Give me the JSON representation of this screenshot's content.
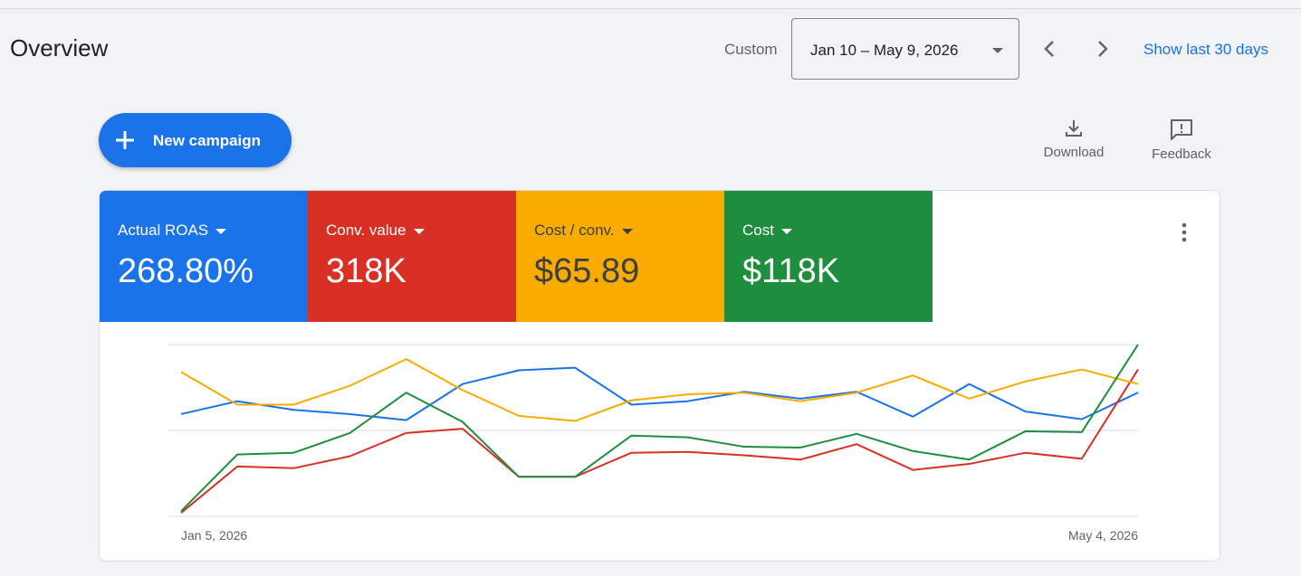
{
  "header": {
    "title": "Overview",
    "custom_label": "Custom",
    "date_range": "Jan 10 – May 9, 2026",
    "show_last": "Show last 30 days"
  },
  "actions": {
    "new_campaign": "New campaign",
    "download": "Download",
    "feedback": "Feedback"
  },
  "metrics": [
    {
      "label": "Actual ROAS",
      "value": "268.80%",
      "color": "#1a73e8"
    },
    {
      "label": "Conv. value",
      "value": "318K",
      "color": "#d93025"
    },
    {
      "label": "Cost / conv.",
      "value": "$65.89",
      "color": "#f9ab00"
    },
    {
      "label": "Cost",
      "value": "$118K",
      "color": "#1e8e3e"
    }
  ],
  "chart_data": {
    "type": "line",
    "x": [
      "Jan 5, 2026",
      "Jan 12, 2026",
      "Jan 19, 2026",
      "Jan 26, 2026",
      "Feb 2, 2026",
      "Feb 9, 2026",
      "Feb 16, 2026",
      "Feb 23, 2026",
      "Mar 2, 2026",
      "Mar 9, 2026",
      "Mar 16, 2026",
      "Mar 23, 2026",
      "Mar 30, 2026",
      "Apr 6, 2026",
      "Apr 13, 2026",
      "Apr 20, 2026",
      "Apr 27, 2026",
      "May 4, 2026"
    ],
    "x_tick_labels": [
      "Jan 5, 2026",
      "May 4, 2026"
    ],
    "ylim": [
      0,
      2
    ],
    "grid": true,
    "series": [
      {
        "color": "#1a73e8",
        "values": [
          1.19,
          1.34,
          1.24,
          1.19,
          1.12,
          1.54,
          1.7,
          1.73,
          1.3,
          1.34,
          1.45,
          1.37,
          1.45,
          1.16,
          1.54,
          1.22,
          1.13,
          1.44
        ]
      },
      {
        "color": "#d93025",
        "values": [
          0.04,
          0.58,
          0.56,
          0.7,
          0.97,
          1.02,
          0.46,
          0.46,
          0.74,
          0.75,
          0.71,
          0.66,
          0.84,
          0.54,
          0.61,
          0.74,
          0.67,
          1.71
        ]
      },
      {
        "color": "#f9ab00",
        "values": [
          1.68,
          1.3,
          1.3,
          1.52,
          1.83,
          1.47,
          1.17,
          1.11,
          1.35,
          1.42,
          1.44,
          1.34,
          1.44,
          1.64,
          1.37,
          1.57,
          1.71,
          1.54
        ]
      },
      {
        "color": "#1e8e3e",
        "values": [
          0.06,
          0.72,
          0.74,
          0.97,
          1.44,
          1.1,
          0.46,
          0.46,
          0.94,
          0.92,
          0.81,
          0.8,
          0.96,
          0.76,
          0.66,
          0.99,
          0.98,
          2.0
        ]
      }
    ]
  }
}
